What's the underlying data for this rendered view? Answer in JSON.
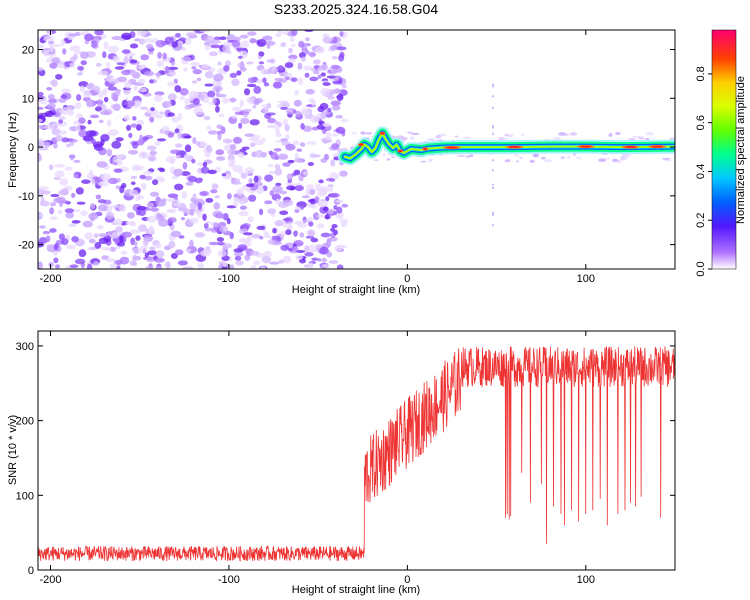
{
  "chart_data": [
    {
      "type": "heatmap",
      "title": "S233.2025.324.16.58.G04",
      "xlabel": "Height of straight line (km)",
      "ylabel": "Frequency (Hz)",
      "xlim": [
        -207,
        150
      ],
      "ylim": [
        -25,
        24
      ],
      "xticks": [
        -200,
        -100,
        0,
        100
      ],
      "yticks": [
        -20,
        -10,
        0,
        10,
        20
      ],
      "noise_region_x": [
        -207,
        -35
      ],
      "signal_ridge": {
        "x": [
          -35,
          -32,
          -29,
          -26,
          -24,
          -22,
          -20,
          -18,
          -16,
          -14,
          -12,
          -10,
          -8,
          -6,
          -4,
          -2,
          0,
          2,
          5,
          8,
          12,
          16,
          20,
          30,
          40,
          50,
          60,
          80,
          100,
          120,
          150
        ],
        "freq": [
          -2,
          -2.3,
          -1.5,
          -0.5,
          0.5,
          0,
          -1,
          -0.3,
          1.5,
          2.8,
          1.5,
          0.5,
          -0.2,
          0.5,
          -0.8,
          -1.2,
          -0.8,
          -0.4,
          -0.5,
          -0.6,
          -0.3,
          -0.2,
          -0.1,
          0,
          0,
          0,
          0,
          0.1,
          0.1,
          0,
          0.1
        ]
      },
      "colorbar": {
        "label": "Normalized spectral amplitude",
        "ticks": [
          "0.0",
          "0.2",
          "0.4",
          "0.6",
          "0.8"
        ],
        "range": [
          0,
          0.98
        ]
      }
    },
    {
      "type": "line",
      "title": "",
      "xlabel": "Height of straight line (km)",
      "ylabel": "SNR (10 * v/v)",
      "xlim": [
        -207,
        150
      ],
      "ylim": [
        0,
        320
      ],
      "xticks": [
        -200,
        -100,
        0,
        100
      ],
      "yticks": [
        0,
        100,
        200,
        300
      ],
      "color": "#ee3333",
      "series": [
        {
          "name": "SNR",
          "baseline_segments": [
            {
              "x": [
                -207,
                -24
              ],
              "mean": 22,
              "spread": 20
            },
            {
              "x": [
                -24,
                30
              ],
              "start": 125,
              "end": 255,
              "spread": 95
            },
            {
              "x": [
                30,
                150
              ],
              "mean": 272,
              "spread": 55
            }
          ],
          "dropouts": [
            {
              "x": 55,
              "to": 70
            },
            {
              "x": 56,
              "to": 75
            },
            {
              "x": 57,
              "to": 68
            },
            {
              "x": 58,
              "to": 72
            },
            {
              "x": 64,
              "to": 130
            },
            {
              "x": 69,
              "to": 90
            },
            {
              "x": 75,
              "to": 115
            },
            {
              "x": 78,
              "to": 35
            },
            {
              "x": 82,
              "to": 85
            },
            {
              "x": 86,
              "to": 75
            },
            {
              "x": 88,
              "to": 60
            },
            {
              "x": 92,
              "to": 80
            },
            {
              "x": 96,
              "to": 65
            },
            {
              "x": 100,
              "to": 75
            },
            {
              "x": 104,
              "to": 80
            },
            {
              "x": 108,
              "to": 95
            },
            {
              "x": 112,
              "to": 60
            },
            {
              "x": 118,
              "to": 75
            },
            {
              "x": 122,
              "to": 80
            },
            {
              "x": 125,
              "to": 90
            },
            {
              "x": 128,
              "to": 85
            },
            {
              "x": 131,
              "to": 98
            },
            {
              "x": 142,
              "to": 70
            }
          ]
        }
      ]
    }
  ]
}
